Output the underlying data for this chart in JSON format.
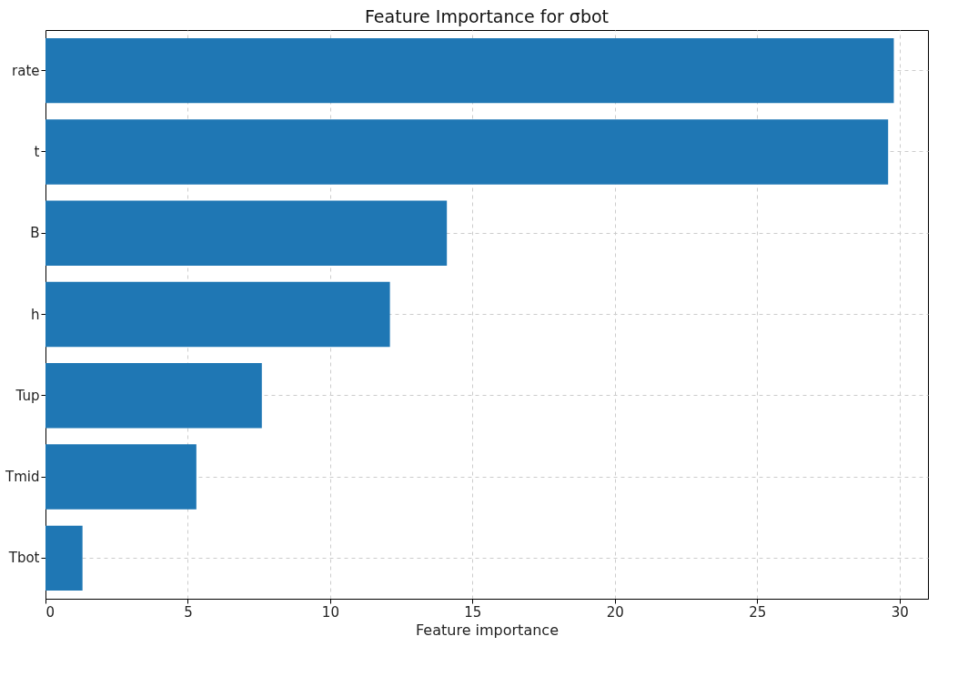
{
  "chart_data": {
    "type": "bar",
    "orientation": "horizontal",
    "title": "Feature Importance for σbot",
    "xlabel": "Feature importance",
    "categories": [
      "rate",
      "t",
      "B",
      "h",
      "Tup",
      "Tmid",
      "Tbot"
    ],
    "values": [
      29.8,
      29.6,
      14.1,
      12.1,
      7.6,
      5.3,
      1.3
    ],
    "color": "#1f77b4",
    "xlim": [
      0,
      31
    ],
    "xticks": [
      0,
      5,
      10,
      15,
      20,
      25,
      30
    ],
    "grid": true
  }
}
